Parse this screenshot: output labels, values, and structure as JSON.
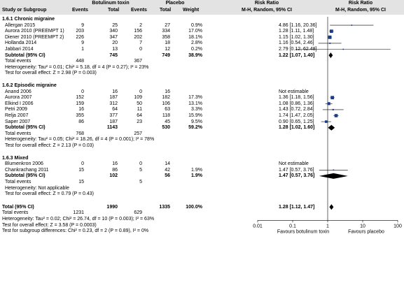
{
  "header": {
    "study": "Study or Subgroup",
    "group1": "Botulinum toxin",
    "group2": "Placebo",
    "events": "Events",
    "total": "Total",
    "weight": "Weight",
    "rr_col": "Risk Ratio",
    "rr_method": "M-H, Random, 95% CI",
    "plot_title": "Risk Ratio",
    "plot_method": "M-H, Random, 95% CI"
  },
  "subgroups": [
    {
      "title": "1.6.1 Chronic migraine",
      "studies": [
        {
          "name": "Allergan 2015",
          "e1": "9",
          "n1": "25",
          "e2": "2",
          "n2": "27",
          "w": "0.9%",
          "ci": "4.86 [1.16, 20.36]"
        },
        {
          "name": "Aurora 2010 (PREEMPT 1)",
          "e1": "203",
          "n1": "340",
          "e2": "156",
          "n2": "334",
          "w": "17.0%",
          "ci": "1.28 [1.11, 1.48]"
        },
        {
          "name": "Diener 2010 (PREEMPT 2)",
          "e1": "226",
          "n1": "347",
          "e2": "202",
          "n2": "358",
          "w": "18.1%",
          "ci": "1.15 [1.02, 1.30]"
        },
        {
          "name": "Hollanda 2014",
          "e1": "9",
          "n1": "20",
          "e2": "7",
          "n2": "18",
          "w": "2.8%",
          "ci": "1.16 [0.54, 2.46]"
        },
        {
          "name": "Jabbari 2014",
          "e1": "1",
          "n1": "13",
          "e2": "0",
          "n2": "12",
          "w": "0.2%",
          "ci": "2.79 [0.12, 62.48]"
        }
      ],
      "subtotal": {
        "label": "Subtotal (95% CI)",
        "n1": "745",
        "n2": "749",
        "w": "38.9%",
        "ci": "1.22 [1.07, 1.40]"
      },
      "events": {
        "label": "Total events",
        "e1": "448",
        "e2": "367"
      },
      "het": "Heterogeneity: Tau² = 0.01; Chi² = 5.18, df = 4 (P = 0.27); I² = 23%",
      "effect": "Test for overall effect: Z = 2.98 (P = 0.003)"
    },
    {
      "title": "1.6.2 Episodic migraine",
      "studies": [
        {
          "name": "Anand 2006",
          "e1": "0",
          "n1": "16",
          "e2": "0",
          "n2": "16",
          "w": "",
          "ci": "Not estimable"
        },
        {
          "name": "Aurora 2007",
          "e1": "152",
          "n1": "187",
          "e2": "109",
          "n2": "182",
          "w": "17.3%",
          "ci": "1.36 [1.18, 1.56]"
        },
        {
          "name": "Elkind I 2006",
          "e1": "159",
          "n1": "312",
          "e2": "50",
          "n2": "106",
          "w": "13.1%",
          "ci": "1.08 [0.86, 1.36]"
        },
        {
          "name": "Petri 2009",
          "e1": "16",
          "n1": "64",
          "e2": "11",
          "n2": "63",
          "w": "3.3%",
          "ci": "1.43 [0.72, 2.84]"
        },
        {
          "name": "Relja 2007",
          "e1": "355",
          "n1": "377",
          "e2": "64",
          "n2": "118",
          "w": "15.9%",
          "ci": "1.74 [1.47, 2.05]"
        },
        {
          "name": "Saper 2007",
          "e1": "86",
          "n1": "187",
          "e2": "23",
          "n2": "45",
          "w": "9.5%",
          "ci": "0.90 [0.65, 1.25]"
        }
      ],
      "subtotal": {
        "label": "Subtotal (95% CI)",
        "n1": "1143",
        "n2": "530",
        "w": "59.2%",
        "ci": "1.28 [1.02, 1.60]"
      },
      "events": {
        "label": "Total events",
        "e1": "768",
        "e2": "257"
      },
      "het": "Heterogeneity: Tau² = 0.05; Chi² = 18.26, df = 4 (P = 0.001); I² = 78%",
      "effect": "Test for overall effect: Z = 2.13 (P = 0.03)"
    },
    {
      "title": "1.6.3 Mixed",
      "studies": [
        {
          "name": "Blumenkron 2006",
          "e1": "0",
          "n1": "16",
          "e2": "0",
          "n2": "14",
          "w": "",
          "ci": "Not estimable"
        },
        {
          "name": "Chankrachang 2011",
          "e1": "15",
          "n1": "86",
          "e2": "5",
          "n2": "42",
          "w": "1.9%",
          "ci": "1.47 [0.57, 3.76]"
        }
      ],
      "subtotal": {
        "label": "Subtotal (95% CI)",
        "n1": "102",
        "n2": "56",
        "w": "1.9%",
        "ci": "1.47 [0.57, 3.76]"
      },
      "events": {
        "label": "Total events",
        "e1": "15",
        "e2": "5"
      },
      "het": "Heterogeneity: Not applicable",
      "effect": "Test for overall effect: Z = 0.79 (P = 0.43)"
    }
  ],
  "total": {
    "label": "Total (95% CI)",
    "n1": "1990",
    "n2": "1335",
    "w": "100.0%",
    "ci": "1.28 [1.12, 1.47]"
  },
  "total_events": {
    "label": "Total events",
    "e1": "1231",
    "e2": "629"
  },
  "total_het": "Heterogeneity: Tau² = 0.02; Chi² = 26.74, df = 10 (P = 0.003); I² = 63%",
  "total_effect": "Test for overall effect: Z = 3.58 (P = 0.0003)",
  "subgroup_diff": "Test for subgroup differences: Chi² = 0.23, df = 2 (P = 0.89), I² = 0%",
  "axis": {
    "ticks": [
      "0.01",
      "0.1",
      "1",
      "10",
      "100"
    ],
    "left_label": "Favours botulinum toxin",
    "right_label": "Favours placebo"
  },
  "colors": {
    "marker": "#1a3c8c",
    "diamond": "#000000",
    "header_bg": "#e3e3e3"
  },
  "chart_data": {
    "type": "forest",
    "scale": "log",
    "xlim": [
      0.01,
      100
    ],
    "ticks": [
      0.01,
      0.1,
      1,
      10,
      100
    ],
    "null_line": 1,
    "studies": [
      {
        "subgroup": "1.6.1 Chronic migraine",
        "name": "Allergan 2015",
        "rr": 4.86,
        "lo": 1.16,
        "hi": 20.36,
        "weight": 0.9
      },
      {
        "subgroup": "1.6.1 Chronic migraine",
        "name": "Aurora 2010 (PREEMPT 1)",
        "rr": 1.28,
        "lo": 1.11,
        "hi": 1.48,
        "weight": 17.0
      },
      {
        "subgroup": "1.6.1 Chronic migraine",
        "name": "Diener 2010 (PREEMPT 2)",
        "rr": 1.15,
        "lo": 1.02,
        "hi": 1.3,
        "weight": 18.1
      },
      {
        "subgroup": "1.6.1 Chronic migraine",
        "name": "Hollanda 2014",
        "rr": 1.16,
        "lo": 0.54,
        "hi": 2.46,
        "weight": 2.8
      },
      {
        "subgroup": "1.6.1 Chronic migraine",
        "name": "Jabbari 2014",
        "rr": 2.79,
        "lo": 0.12,
        "hi": 62.48,
        "weight": 0.2
      },
      {
        "subgroup": "1.6.2 Episodic migraine",
        "name": "Anand 2006",
        "rr": null,
        "lo": null,
        "hi": null,
        "weight": null
      },
      {
        "subgroup": "1.6.2 Episodic migraine",
        "name": "Aurora 2007",
        "rr": 1.36,
        "lo": 1.18,
        "hi": 1.56,
        "weight": 17.3
      },
      {
        "subgroup": "1.6.2 Episodic migraine",
        "name": "Elkind I 2006",
        "rr": 1.08,
        "lo": 0.86,
        "hi": 1.36,
        "weight": 13.1
      },
      {
        "subgroup": "1.6.2 Episodic migraine",
        "name": "Petri 2009",
        "rr": 1.43,
        "lo": 0.72,
        "hi": 2.84,
        "weight": 3.3
      },
      {
        "subgroup": "1.6.2 Episodic migraine",
        "name": "Relja 2007",
        "rr": 1.74,
        "lo": 1.47,
        "hi": 2.05,
        "weight": 15.9
      },
      {
        "subgroup": "1.6.2 Episodic migraine",
        "name": "Saper 2007",
        "rr": 0.9,
        "lo": 0.65,
        "hi": 1.25,
        "weight": 9.5
      },
      {
        "subgroup": "1.6.3 Mixed",
        "name": "Blumenkron 2006",
        "rr": null,
        "lo": null,
        "hi": null,
        "weight": null
      },
      {
        "subgroup": "1.6.3 Mixed",
        "name": "Chankrachang 2011",
        "rr": 1.47,
        "lo": 0.57,
        "hi": 3.76,
        "weight": 1.9
      }
    ],
    "pooled": [
      {
        "name": "Subtotal 1.6.1",
        "rr": 1.22,
        "lo": 1.07,
        "hi": 1.4
      },
      {
        "name": "Subtotal 1.6.2",
        "rr": 1.28,
        "lo": 1.02,
        "hi": 1.6
      },
      {
        "name": "Subtotal 1.6.3",
        "rr": 1.47,
        "lo": 0.57,
        "hi": 3.76
      },
      {
        "name": "Total",
        "rr": 1.28,
        "lo": 1.12,
        "hi": 1.47
      }
    ]
  }
}
